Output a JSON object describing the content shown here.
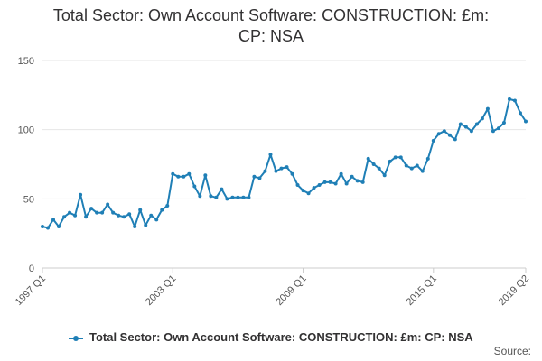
{
  "chart_data": {
    "type": "line",
    "title_line1": "Total Sector: Own Account Software: CONSTRUCTION: £m:",
    "title_line2": "CP: NSA",
    "xlabel": "",
    "ylabel": "",
    "ylim": [
      0,
      150
    ],
    "yticks": [
      0,
      50,
      100,
      150
    ],
    "xtick_labels": [
      "1997 Q1",
      "2003 Q1",
      "2009 Q1",
      "2015 Q1",
      "2019 Q2"
    ],
    "grid": true,
    "legend_position": "bottom",
    "source_label": "Source:",
    "color": "#1f7fb6",
    "series": [
      {
        "name": "Total Sector: Own Account Software: CONSTRUCTION: £m: CP: NSA",
        "x": [
          "1997 Q1",
          "1997 Q2",
          "1997 Q3",
          "1997 Q4",
          "1998 Q1",
          "1998 Q2",
          "1998 Q3",
          "1998 Q4",
          "1999 Q1",
          "1999 Q2",
          "1999 Q3",
          "1999 Q4",
          "2000 Q1",
          "2000 Q2",
          "2000 Q3",
          "2000 Q4",
          "2001 Q1",
          "2001 Q2",
          "2001 Q3",
          "2001 Q4",
          "2002 Q1",
          "2002 Q2",
          "2002 Q3",
          "2002 Q4",
          "2003 Q1",
          "2003 Q2",
          "2003 Q3",
          "2003 Q4",
          "2004 Q1",
          "2004 Q2",
          "2004 Q3",
          "2004 Q4",
          "2005 Q1",
          "2005 Q2",
          "2005 Q3",
          "2005 Q4",
          "2006 Q1",
          "2006 Q2",
          "2006 Q3",
          "2006 Q4",
          "2007 Q1",
          "2007 Q2",
          "2007 Q3",
          "2007 Q4",
          "2008 Q1",
          "2008 Q2",
          "2008 Q3",
          "2008 Q4",
          "2009 Q1",
          "2009 Q2",
          "2009 Q3",
          "2009 Q4",
          "2010 Q1",
          "2010 Q2",
          "2010 Q3",
          "2010 Q4",
          "2011 Q1",
          "2011 Q2",
          "2011 Q3",
          "2011 Q4",
          "2012 Q1",
          "2012 Q2",
          "2012 Q3",
          "2012 Q4",
          "2013 Q1",
          "2013 Q2",
          "2013 Q3",
          "2013 Q4",
          "2014 Q1",
          "2014 Q2",
          "2014 Q3",
          "2014 Q4",
          "2015 Q1",
          "2015 Q2",
          "2015 Q3",
          "2015 Q4",
          "2016 Q1",
          "2016 Q2",
          "2016 Q3",
          "2016 Q4",
          "2017 Q1",
          "2017 Q2",
          "2017 Q3",
          "2017 Q4",
          "2018 Q1",
          "2018 Q2",
          "2018 Q3",
          "2018 Q4",
          "2019 Q1",
          "2019 Q2"
        ],
        "values": [
          30,
          29,
          35,
          30,
          37,
          40,
          38,
          53,
          37,
          43,
          40,
          40,
          46,
          40,
          38,
          37,
          39,
          30,
          42,
          31,
          38,
          35,
          42,
          45,
          68,
          66,
          66,
          68,
          59,
          52,
          67,
          52,
          51,
          57,
          50,
          51,
          51,
          51,
          51,
          66,
          65,
          70,
          82,
          70,
          72,
          73,
          68,
          60,
          56,
          54,
          58,
          60,
          62,
          62,
          61,
          68,
          61,
          66,
          63,
          62,
          79,
          75,
          72,
          67,
          77,
          80,
          80,
          74,
          72,
          74,
          70,
          79,
          92,
          97,
          99,
          96,
          93,
          104,
          102,
          99,
          104,
          108,
          115,
          99,
          101,
          105,
          122,
          121,
          112,
          106
        ]
      }
    ]
  }
}
